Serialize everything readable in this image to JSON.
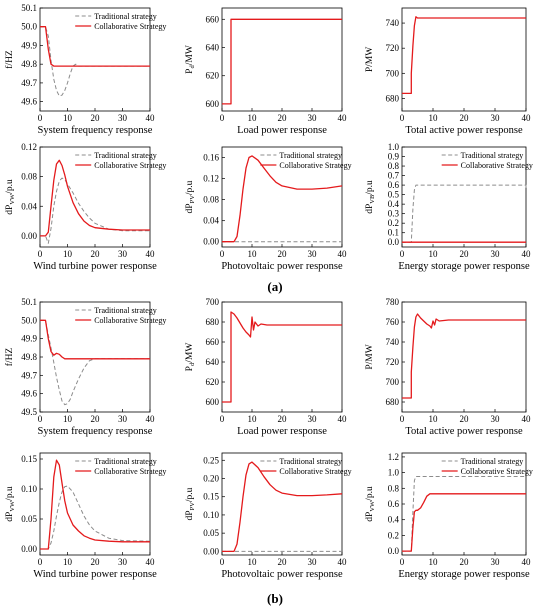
{
  "figure": {
    "label_a": "(a)",
    "label_b": "(b)"
  },
  "colors": {
    "traditional": "#8c8c8c",
    "collaborative": "#e41a1c",
    "axis": "#000000"
  },
  "legend_labels": {
    "traditional": "Traditional strategy",
    "collaborative": "Collaborative Strategy"
  },
  "chart_data": [
    {
      "id": "a-freq",
      "type": "line",
      "title": "System frequency response",
      "ylabel": "f/HZ",
      "xlim": [
        0,
        40
      ],
      "ylim": [
        49.55,
        50.1
      ],
      "xticks": [
        "0",
        "10",
        "20",
        "30",
        "40"
      ],
      "yticks": [
        "49.6",
        "49.7",
        "49.8",
        "49.9",
        "50.0",
        "50.1"
      ],
      "legend": "top-right",
      "grid": false,
      "series": [
        {
          "name": "Traditional strategy",
          "style": "dashed",
          "x": [
            0,
            2,
            3,
            4,
            5,
            6,
            7,
            8,
            9,
            10,
            11,
            12,
            13,
            14,
            15,
            40
          ],
          "y": [
            50.0,
            50.0,
            49.95,
            49.82,
            49.72,
            49.66,
            49.63,
            49.635,
            49.66,
            49.7,
            49.75,
            49.79,
            49.8,
            49.79,
            49.79,
            49.79
          ]
        },
        {
          "name": "Collaborative Strategy",
          "style": "solid",
          "x": [
            0,
            2,
            3,
            4,
            5,
            6,
            7,
            10,
            40
          ],
          "y": [
            50.0,
            50.0,
            49.88,
            49.8,
            49.79,
            49.79,
            49.79,
            49.79,
            49.79
          ]
        }
      ]
    },
    {
      "id": "a-load",
      "type": "line",
      "title": "Load power response",
      "ylabel": "P_{d}/MW",
      "xlim": [
        0,
        40
      ],
      "ylim": [
        595,
        668
      ],
      "xticks": [
        "0",
        "10",
        "20",
        "30",
        "40"
      ],
      "yticks": [
        "600",
        "620",
        "640",
        "660"
      ],
      "legend": "none",
      "grid": false,
      "series": [
        {
          "name": "Collaborative Strategy",
          "style": "solid",
          "x": [
            0,
            3,
            3.01,
            40
          ],
          "y": [
            600,
            600,
            660,
            660
          ]
        }
      ]
    },
    {
      "id": "a-total",
      "type": "line",
      "title": "Total active power response",
      "ylabel": "P/MW",
      "xlim": [
        0,
        40
      ],
      "ylim": [
        670,
        752
      ],
      "xticks": [
        "0",
        "10",
        "20",
        "30",
        "40"
      ],
      "yticks": [
        "680",
        "700",
        "720",
        "740"
      ],
      "legend": "none",
      "grid": false,
      "series": [
        {
          "name": "Collaborative Strategy",
          "style": "solid",
          "x": [
            0,
            3,
            3.01,
            3.5,
            4,
            4.5,
            5,
            6,
            40
          ],
          "y": [
            684,
            684,
            700,
            722,
            738,
            745,
            744,
            744,
            744
          ]
        }
      ]
    },
    {
      "id": "a-wind",
      "type": "line",
      "title": "Wind turbine power response",
      "ylabel": "dP_{VW}/p.u",
      "xlim": [
        0,
        40
      ],
      "ylim": [
        -0.015,
        0.12
      ],
      "xticks": [
        "0",
        "10",
        "20",
        "30",
        "40"
      ],
      "yticks": [
        "0.00",
        "0.04",
        "0.08",
        "0.12"
      ],
      "legend": "top-right",
      "grid": false,
      "series": [
        {
          "name": "Traditional strategy",
          "style": "dashed",
          "x": [
            0,
            2,
            3,
            4,
            5,
            6,
            7,
            8,
            9,
            10,
            12,
            14,
            16,
            18,
            20,
            25,
            30,
            40
          ],
          "y": [
            0,
            0,
            -0.01,
            0.01,
            0.04,
            0.06,
            0.074,
            0.078,
            0.076,
            0.07,
            0.058,
            0.044,
            0.033,
            0.024,
            0.017,
            0.009,
            0.007,
            0.007
          ]
        },
        {
          "name": "Collaborative Strategy",
          "style": "solid",
          "x": [
            0,
            2,
            3,
            4,
            5,
            6,
            7,
            8,
            9,
            10,
            12,
            14,
            16,
            18,
            20,
            25,
            30,
            40
          ],
          "y": [
            0,
            0,
            0.005,
            0.04,
            0.075,
            0.097,
            0.102,
            0.095,
            0.082,
            0.067,
            0.045,
            0.03,
            0.02,
            0.014,
            0.011,
            0.009,
            0.008,
            0.008
          ]
        }
      ]
    },
    {
      "id": "a-pv",
      "type": "line",
      "title": "Photovoltaic power response",
      "ylabel": "dP_{PV}/p.u",
      "xlim": [
        0,
        40
      ],
      "ylim": [
        -0.01,
        0.18
      ],
      "xticks": [
        "0",
        "10",
        "20",
        "30",
        "40"
      ],
      "yticks": [
        "0.00",
        "0.04",
        "0.08",
        "0.12",
        "0.16"
      ],
      "legend": "top-right",
      "grid": false,
      "series": [
        {
          "name": "Traditional strategy",
          "style": "dashed",
          "x": [
            0,
            40
          ],
          "y": [
            0,
            0
          ]
        },
        {
          "name": "Collaborative Strategy",
          "style": "solid",
          "x": [
            0,
            4,
            5,
            6,
            7,
            8,
            9,
            10,
            12,
            14,
            16,
            18,
            20,
            25,
            30,
            35,
            40
          ],
          "y": [
            0,
            0,
            0.01,
            0.05,
            0.1,
            0.14,
            0.16,
            0.163,
            0.155,
            0.14,
            0.125,
            0.113,
            0.106,
            0.1,
            0.1,
            0.102,
            0.106
          ]
        }
      ]
    },
    {
      "id": "a-ess",
      "type": "line",
      "title": "Energy storage power response",
      "ylabel": "dP_{VB}/p.u",
      "xlim": [
        0,
        40
      ],
      "ylim": [
        -0.05,
        1.0
      ],
      "xticks": [
        "0",
        "10",
        "20",
        "30",
        "40"
      ],
      "yticks": [
        "0.0",
        "0.1",
        "0.2",
        "0.3",
        "0.4",
        "0.5",
        "0.6",
        "0.7",
        "0.8",
        "0.9",
        "1.0"
      ],
      "legend": "top-right",
      "grid": false,
      "series": [
        {
          "name": "Traditional strategy",
          "style": "dashed",
          "x": [
            0,
            3,
            3.5,
            4,
            4.5,
            5,
            40,
            40.01
          ],
          "y": [
            0,
            0,
            0.35,
            0.55,
            0.6,
            0.6,
            0.6,
            0.56
          ]
        },
        {
          "name": "Collaborative Strategy",
          "style": "solid",
          "x": [
            0,
            40
          ],
          "y": [
            0,
            0
          ]
        }
      ]
    },
    {
      "id": "b-freq",
      "type": "line",
      "title": "System frequency response",
      "ylabel": "f/HZ",
      "xlim": [
        0,
        40
      ],
      "ylim": [
        49.5,
        50.1
      ],
      "xticks": [
        "0",
        "10",
        "20",
        "30",
        "40"
      ],
      "yticks": [
        "49.5",
        "49.6",
        "49.7",
        "49.8",
        "49.9",
        "50.0",
        "50.1"
      ],
      "legend": "top-right",
      "grid": false,
      "series": [
        {
          "name": "Traditional strategy",
          "style": "dashed",
          "x": [
            0,
            2,
            3,
            4,
            5,
            6,
            7,
            8,
            9,
            10,
            11,
            12,
            14,
            16,
            18,
            20,
            25,
            40
          ],
          "y": [
            50.0,
            50.0,
            49.92,
            49.85,
            49.77,
            49.69,
            49.62,
            49.56,
            49.54,
            49.545,
            49.57,
            49.61,
            49.68,
            49.74,
            49.78,
            49.79,
            49.79,
            49.79
          ]
        },
        {
          "name": "Collaborative Strategy",
          "style": "solid",
          "x": [
            0,
            2,
            3,
            4,
            5,
            6,
            7,
            8,
            9,
            10,
            12,
            15,
            40
          ],
          "y": [
            50.0,
            50.0,
            49.9,
            49.83,
            49.81,
            49.82,
            49.815,
            49.8,
            49.79,
            49.79,
            49.79,
            49.79,
            49.79
          ]
        }
      ]
    },
    {
      "id": "b-load",
      "type": "line",
      "title": "Load power response",
      "ylabel": "P_{d}/MW",
      "xlim": [
        0,
        40
      ],
      "ylim": [
        590,
        700
      ],
      "xticks": [
        "0",
        "10",
        "20",
        "30",
        "40"
      ],
      "yticks": [
        "600",
        "620",
        "640",
        "660",
        "680",
        "700"
      ],
      "legend": "none",
      "grid": false,
      "series": [
        {
          "name": "Collaborative Strategy",
          "style": "solid",
          "x": [
            0,
            3,
            3.01,
            4,
            5,
            6,
            7,
            8,
            9,
            9.5,
            10,
            10.5,
            11,
            12,
            13,
            15,
            40
          ],
          "y": [
            600,
            600,
            690,
            688,
            684,
            679,
            674,
            670,
            667,
            665,
            685,
            672,
            680,
            676,
            678,
            677,
            677
          ]
        }
      ]
    },
    {
      "id": "b-total",
      "type": "line",
      "title": "Total active power response",
      "ylabel": "P/MW",
      "xlim": [
        0,
        40
      ],
      "ylim": [
        670,
        780
      ],
      "xticks": [
        "0",
        "10",
        "20",
        "30",
        "40"
      ],
      "yticks": [
        "680",
        "700",
        "720",
        "740",
        "760",
        "780"
      ],
      "legend": "none",
      "grid": false,
      "series": [
        {
          "name": "Collaborative Strategy",
          "style": "solid",
          "x": [
            0,
            3,
            3.01,
            3.5,
            4,
            4.5,
            5,
            6,
            7,
            8,
            9,
            9.5,
            10,
            10.5,
            11,
            12,
            15,
            40
          ],
          "y": [
            684,
            684,
            710,
            735,
            755,
            765,
            768,
            764,
            761,
            758,
            756,
            754,
            761,
            757,
            763,
            761,
            762,
            762
          ]
        }
      ]
    },
    {
      "id": "b-wind",
      "type": "line",
      "title": "Wind turbine power response",
      "ylabel": "dP_{VW}/p.u",
      "xlim": [
        0,
        40
      ],
      "ylim": [
        -0.01,
        0.16
      ],
      "xticks": [
        "0",
        "10",
        "20",
        "30",
        "40"
      ],
      "yticks": [
        "0.00",
        "0.05",
        "0.10",
        "0.15"
      ],
      "legend": "top-right",
      "grid": false,
      "series": [
        {
          "name": "Traditional strategy",
          "style": "dashed",
          "x": [
            0,
            3,
            4,
            5,
            6,
            7,
            8,
            9,
            10,
            12,
            14,
            16,
            18,
            20,
            25,
            30,
            40
          ],
          "y": [
            0,
            0,
            0.01,
            0.03,
            0.055,
            0.078,
            0.095,
            0.104,
            0.105,
            0.095,
            0.075,
            0.055,
            0.04,
            0.03,
            0.018,
            0.014,
            0.013
          ]
        },
        {
          "name": "Collaborative Strategy",
          "style": "solid",
          "x": [
            0,
            3,
            4,
            5,
            6,
            7,
            8,
            9,
            10,
            12,
            14,
            16,
            18,
            20,
            25,
            30,
            40
          ],
          "y": [
            0,
            0,
            0.05,
            0.12,
            0.148,
            0.14,
            0.11,
            0.08,
            0.06,
            0.04,
            0.03,
            0.022,
            0.018,
            0.015,
            0.013,
            0.012,
            0.012
          ]
        }
      ]
    },
    {
      "id": "b-pv",
      "type": "line",
      "title": "Photovoltaic power response",
      "ylabel": "dP_{PV}/p.u",
      "xlim": [
        0,
        40
      ],
      "ylim": [
        -0.01,
        0.27
      ],
      "xticks": [
        "0",
        "10",
        "20",
        "30",
        "40"
      ],
      "yticks": [
        "0.00",
        "0.05",
        "0.10",
        "0.15",
        "0.20",
        "0.25"
      ],
      "legend": "top-right",
      "grid": false,
      "series": [
        {
          "name": "Traditional strategy",
          "style": "dashed",
          "x": [
            0,
            40
          ],
          "y": [
            0,
            0
          ]
        },
        {
          "name": "Collaborative Strategy",
          "style": "solid",
          "x": [
            0,
            4,
            5,
            6,
            7,
            8,
            9,
            10,
            12,
            14,
            16,
            18,
            20,
            25,
            30,
            35,
            40
          ],
          "y": [
            0,
            0,
            0.02,
            0.08,
            0.15,
            0.21,
            0.24,
            0.245,
            0.23,
            0.205,
            0.183,
            0.168,
            0.16,
            0.153,
            0.153,
            0.155,
            0.158
          ]
        }
      ]
    },
    {
      "id": "b-ess",
      "type": "line",
      "title": "Energy storage power response",
      "ylabel": "dP_{VW}/p.u",
      "xlim": [
        0,
        40
      ],
      "ylim": [
        -0.05,
        1.25
      ],
      "xticks": [
        "0",
        "10",
        "20",
        "30",
        "40"
      ],
      "yticks": [
        "0.0",
        "0.2",
        "0.4",
        "0.6",
        "0.8",
        "1.0",
        "1.2"
      ],
      "legend": "top-right",
      "grid": false,
      "series": [
        {
          "name": "Traditional strategy",
          "style": "dashed",
          "x": [
            0,
            3,
            3.5,
            4,
            4.5,
            40
          ],
          "y": [
            0,
            0,
            0.5,
            0.9,
            0.95,
            0.95
          ]
        },
        {
          "name": "Collaborative Strategy",
          "style": "solid",
          "x": [
            0,
            3,
            3.5,
            4,
            4.5,
            5,
            6,
            7,
            8,
            9,
            10,
            40
          ],
          "y": [
            0,
            0,
            0.3,
            0.5,
            0.52,
            0.52,
            0.55,
            0.62,
            0.7,
            0.73,
            0.73,
            0.73
          ]
        }
      ]
    }
  ]
}
